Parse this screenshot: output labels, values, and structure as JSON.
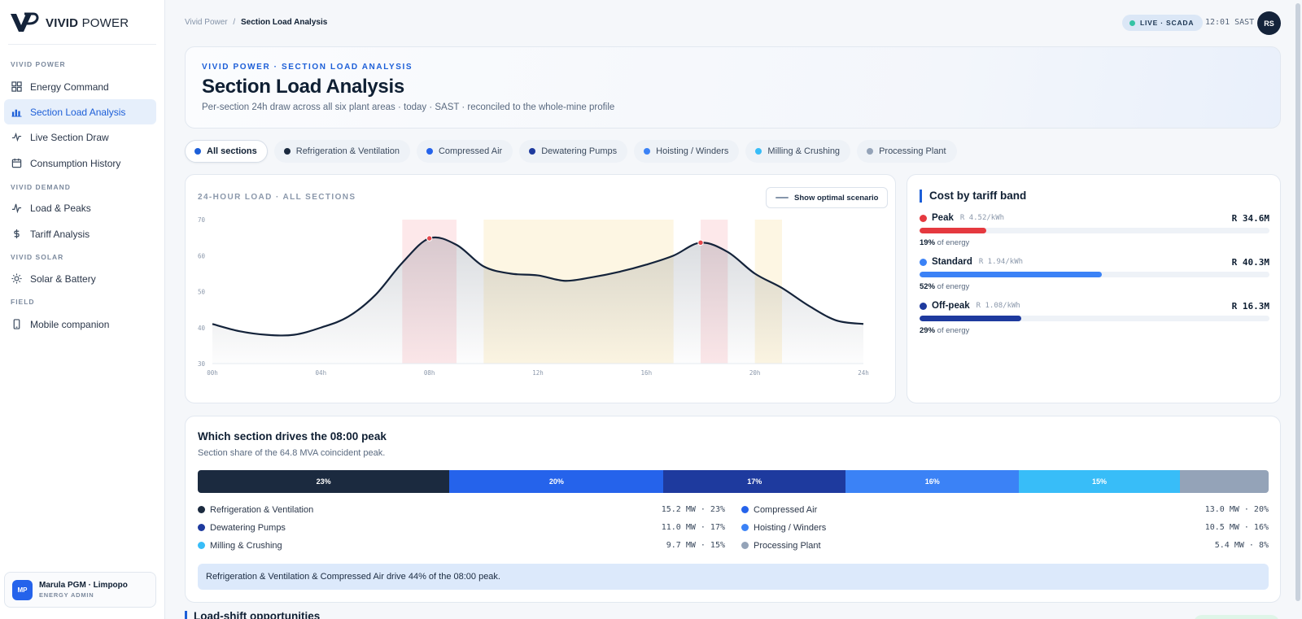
{
  "brand": {
    "bold": "VIVID",
    "light": "POWER"
  },
  "sidebar": {
    "sections": [
      {
        "label": "VIVID POWER"
      },
      {
        "label": "VIVID DEMAND"
      },
      {
        "label": "VIVID SOLAR"
      },
      {
        "label": "FIELD"
      }
    ],
    "items": [
      {
        "label": "Energy Command",
        "icon": "grid-icon"
      },
      {
        "label": "Section Load Analysis",
        "icon": "bar-chart-icon",
        "active": true
      },
      {
        "label": "Live Section Draw",
        "icon": "pulse-icon"
      },
      {
        "label": "Consumption History",
        "icon": "calendar-icon"
      },
      {
        "label": "Load & Peaks",
        "icon": "activity-icon"
      },
      {
        "label": "Tariff Analysis",
        "icon": "dollar-icon"
      },
      {
        "label": "Solar & Battery",
        "icon": "sun-icon"
      },
      {
        "label": "Mobile companion",
        "icon": "phone-icon"
      }
    ],
    "user": {
      "initials": "MP",
      "name": "Marula PGM · Limpopo",
      "role": "ENERGY ADMIN"
    }
  },
  "topbar": {
    "breadcrumb_root": "Vivid Power",
    "breadcrumb_sep": "/",
    "breadcrumb_current": "Section Load Analysis",
    "live_label": "LIVE · SCADA",
    "clock": "12:01 SAST",
    "avatar": "RS"
  },
  "hero": {
    "kicker": "VIVID POWER · SECTION LOAD ANALYSIS",
    "title": "Section Load Analysis",
    "subtitle": "Per-section 24h draw across all six plant areas · today · SAST · reconciled to the whole-mine profile"
  },
  "filters": [
    {
      "label": "All sections",
      "color": "#1d5fd8",
      "active": true
    },
    {
      "label": "Refrigeration & Ventilation",
      "color": "#1b2a3f"
    },
    {
      "label": "Compressed Air",
      "color": "#2563eb"
    },
    {
      "label": "Dewatering Pumps",
      "color": "#1e3a9e"
    },
    {
      "label": "Hoisting / Winders",
      "color": "#3b82f6"
    },
    {
      "label": "Milling & Crushing",
      "color": "#38bdf8"
    },
    {
      "label": "Processing Plant",
      "color": "#94a3b8"
    }
  ],
  "load_chart": {
    "eyebrow": "24-HOUR LOAD · ALL SECTIONS",
    "optimal_button": "Show optimal scenario"
  },
  "chart_data": {
    "type": "line",
    "x_unit": "hour",
    "x": [
      0,
      1,
      2,
      3,
      4,
      5,
      6,
      7,
      8,
      9,
      10,
      11,
      12,
      13,
      14,
      15,
      16,
      17,
      18,
      19,
      20,
      21,
      22,
      23,
      24
    ],
    "y": [
      41,
      39,
      38,
      38,
      40,
      43,
      49,
      58,
      64.8,
      63,
      57,
      55,
      54.5,
      53,
      54,
      55.5,
      57.5,
      60,
      63.6,
      61,
      55,
      51,
      46,
      42,
      41
    ],
    "ylim": [
      30,
      70
    ],
    "yticks": [
      "30",
      "40",
      "50",
      "60",
      "70"
    ],
    "xlim": [
      0,
      24
    ],
    "xticks": [
      "00h",
      "04h",
      "08h",
      "12h",
      "16h",
      "20h",
      "24h"
    ],
    "peak_markers": [
      {
        "x": 8,
        "y": 64.8
      },
      {
        "x": 18,
        "y": 63.6
      }
    ],
    "tariff_bands": [
      {
        "band": "peak",
        "from": 7,
        "to": 9,
        "color": "#fde8ea"
      },
      {
        "band": "standard",
        "from": 10,
        "to": 17,
        "color": "#fdf6e3"
      },
      {
        "band": "peak",
        "from": 18,
        "to": 19,
        "color": "#fde8ea"
      },
      {
        "band": "standard",
        "from": 20,
        "to": 21,
        "color": "#fdf6e3"
      }
    ],
    "line_color": "#14233a",
    "marker_color": "#e5484d"
  },
  "tariff": {
    "title": "Cost by tariff band",
    "bands": [
      {
        "name": "Peak",
        "rate": "R 4.52/kWh",
        "amount": "R 34.6M",
        "share": "19%",
        "note": "of energy",
        "fraction": 0.19,
        "color": "#e5393f"
      },
      {
        "name": "Standard",
        "rate": "R 1.94/kWh",
        "amount": "R 40.3M",
        "share": "52%",
        "note": "of energy",
        "fraction": 0.52,
        "color": "#3b82f6"
      },
      {
        "name": "Off-peak",
        "rate": "R 1.08/kWh",
        "amount": "R 16.3M",
        "share": "29%",
        "note": "of energy",
        "fraction": 0.29,
        "color": "#1e3a9e"
      }
    ]
  },
  "peak_share": {
    "title": "Which section drives the 08:00 peak",
    "subtitle": "Section share of the 64.8 MVA coincident peak.",
    "segments": [
      {
        "label": "23%",
        "fraction": 0.235,
        "color": "#1b2a3f"
      },
      {
        "label": "20%",
        "fraction": 0.2,
        "color": "#2563eb"
      },
      {
        "label": "17%",
        "fraction": 0.17,
        "color": "#1e3a9e"
      },
      {
        "label": "16%",
        "fraction": 0.162,
        "color": "#3b82f6"
      },
      {
        "label": "15%",
        "fraction": 0.15,
        "color": "#38bdf8"
      },
      {
        "label": "",
        "fraction": 0.083,
        "color": "#94a3b8"
      }
    ],
    "legend": [
      {
        "name": "Refrigeration & Ventilation",
        "value": "15.2 MW · 23%",
        "color": "#1b2a3f"
      },
      {
        "name": "Compressed Air",
        "value": "13.0 MW · 20%",
        "color": "#2563eb"
      },
      {
        "name": "Dewatering Pumps",
        "value": "11.0 MW · 17%",
        "color": "#1e3a9e"
      },
      {
        "name": "Hoisting / Winders",
        "value": "10.5 MW · 16%",
        "color": "#3b82f6"
      },
      {
        "name": "Milling & Crushing",
        "value": "9.7 MW · 15%",
        "color": "#38bdf8"
      },
      {
        "name": "Processing Plant",
        "value": "5.4 MW · 8%",
        "color": "#94a3b8"
      }
    ],
    "callout": "Refrigeration & Ventilation & Compressed Air drive 44% of the 08:00 peak."
  },
  "next_section": {
    "title": "Load-shift opportunities"
  }
}
